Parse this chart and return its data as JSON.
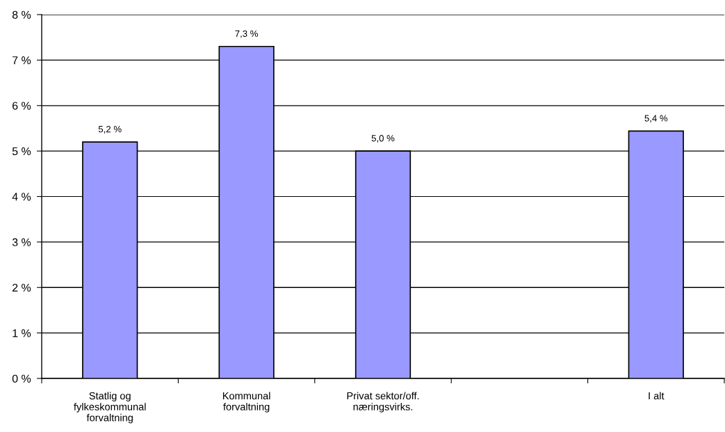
{
  "chart_data": {
    "type": "bar",
    "categories": [
      "Statlig og\nfylkeskommunal\nforvaltning",
      "Kommunal\nforvaltning",
      "Privat sektor/off.\nnæringsvirks.",
      null,
      "I alt"
    ],
    "values": [
      5.2,
      7.3,
      5.0,
      null,
      5.44
    ],
    "value_labels": [
      "5,2 %",
      "7,3 %",
      "5,0 %",
      null,
      "5,4 %"
    ],
    "color": "#9999ff",
    "ylim": [
      0,
      8
    ],
    "yticks": [
      {
        "value": 0,
        "label": "0 %"
      },
      {
        "value": 1,
        "label": "1 %"
      },
      {
        "value": 2,
        "label": "2 %"
      },
      {
        "value": 3,
        "label": "3 %"
      },
      {
        "value": 4,
        "label": "4 %"
      },
      {
        "value": 5,
        "label": "5 %"
      },
      {
        "value": 6,
        "label": "6 %"
      },
      {
        "value": 7,
        "label": "7 %"
      },
      {
        "value": 8,
        "label": "8 %"
      }
    ],
    "grid": "y"
  }
}
